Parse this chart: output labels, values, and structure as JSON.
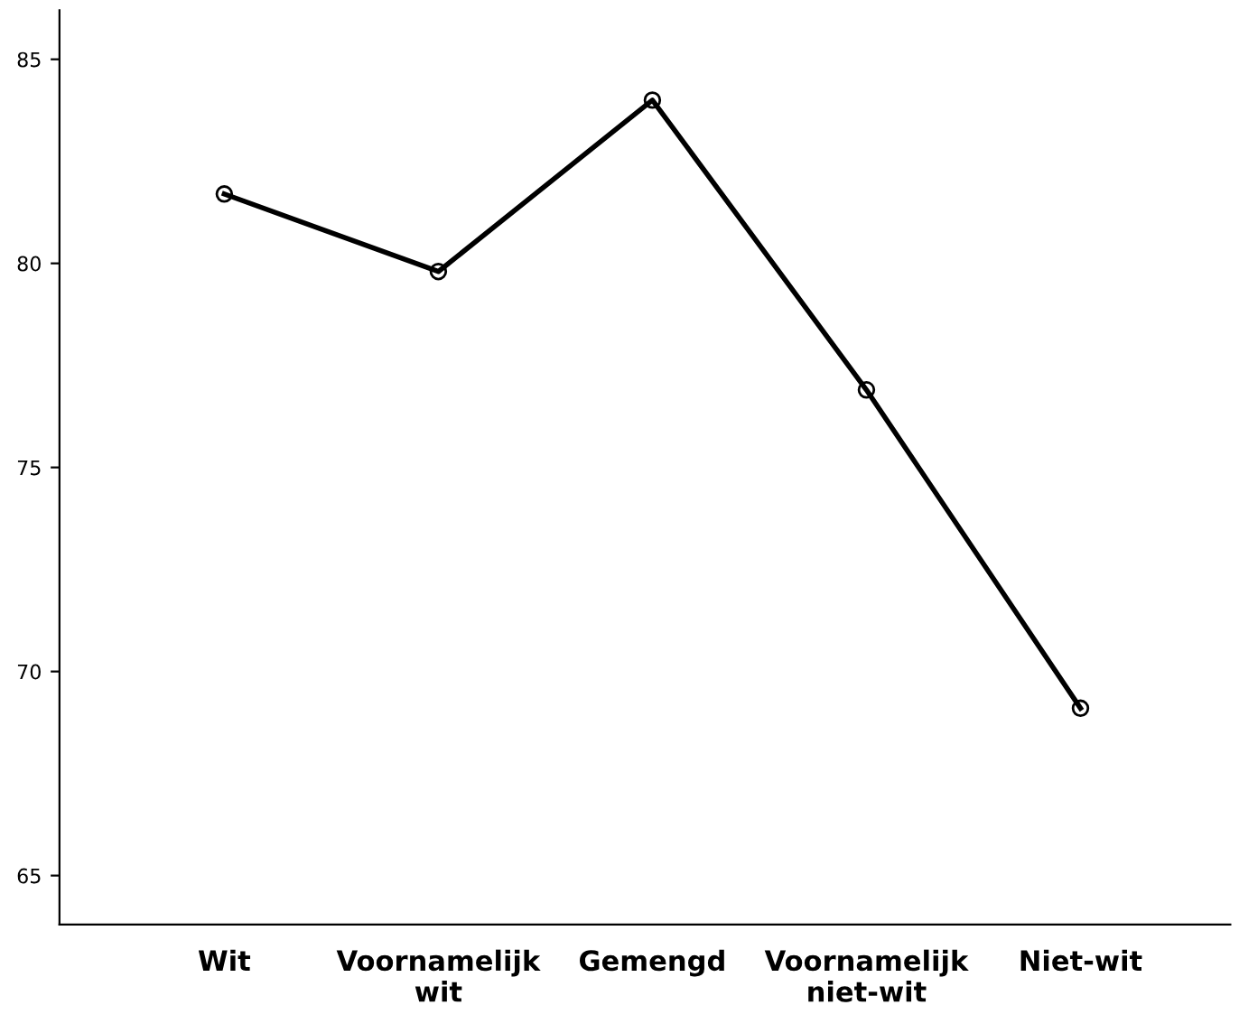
{
  "chart_data": {
    "type": "line",
    "categories": [
      "Wit",
      "Voornamelijk\nwit",
      "Gemengd",
      "Voornamelijk\nniet-wit",
      "Niet-wit"
    ],
    "series": [
      {
        "color": "#000000",
        "values": [
          81.7,
          79.8,
          84.0,
          76.9,
          69.1
        ]
      }
    ],
    "ylim": [
      63.8,
      86.2
    ],
    "yticks": [
      65,
      70,
      75,
      80,
      85
    ],
    "marker": "circle",
    "line_style": "solid"
  }
}
